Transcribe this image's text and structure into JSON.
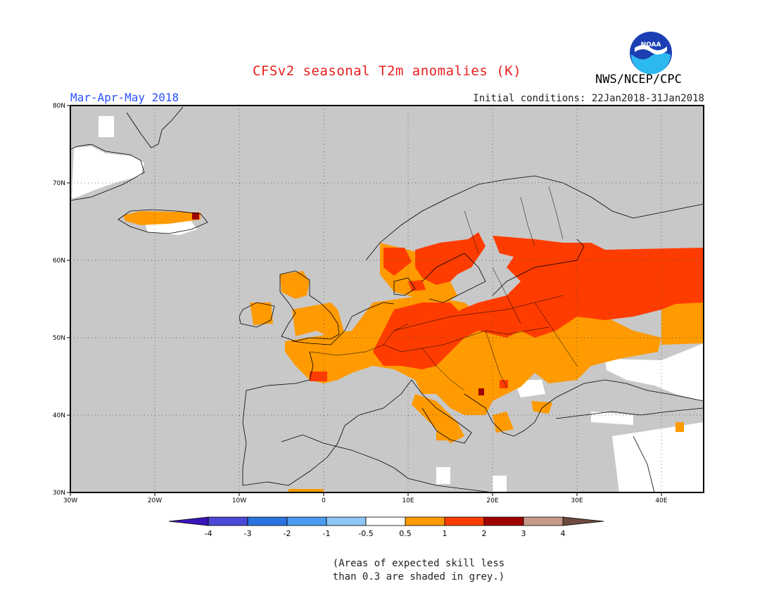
{
  "header": {
    "title": "CFSv2 seasonal T2m anomalies (K)",
    "period": "Mar-Apr-May 2018",
    "initial_conditions": "Initial conditions: 22Jan2018-31Jan2018",
    "agency": "NWS/NCEP/CPC",
    "logo_text": "NOAA"
  },
  "map": {
    "lon_range": [
      -30,
      45
    ],
    "lat_range": [
      30,
      80
    ],
    "lon_ticks": [
      "30W",
      "20W",
      "10W",
      "0",
      "10E",
      "20E",
      "30E",
      "40E"
    ],
    "lat_ticks": [
      "30N",
      "40N",
      "50N",
      "60N",
      "70N",
      "80N"
    ],
    "colors": {
      "grey_low_skill": "#c8c8c8",
      "anom_0_5_to_1": "#ff9a00",
      "anom_1_to_2": "#ff3c00",
      "anom_2_to_3": "#a00000",
      "no_signal": "#ffffff"
    }
  },
  "colorbar": {
    "labels": [
      "-4",
      "-3",
      "-2",
      "-1",
      "-0.5",
      "0.5",
      "1",
      "2",
      "3",
      "4"
    ],
    "colors": [
      "#3a16b8",
      "#4e48d6",
      "#2a73e0",
      "#4a9bf0",
      "#8ec6f5",
      "#ffffff",
      "#ff9a00",
      "#ff3c00",
      "#a00000",
      "#c89a8a",
      "#6c4a3e"
    ]
  },
  "note": {
    "line1": "(Areas of expected skill less",
    "line2": "than 0.3 are shaded in grey.)"
  }
}
